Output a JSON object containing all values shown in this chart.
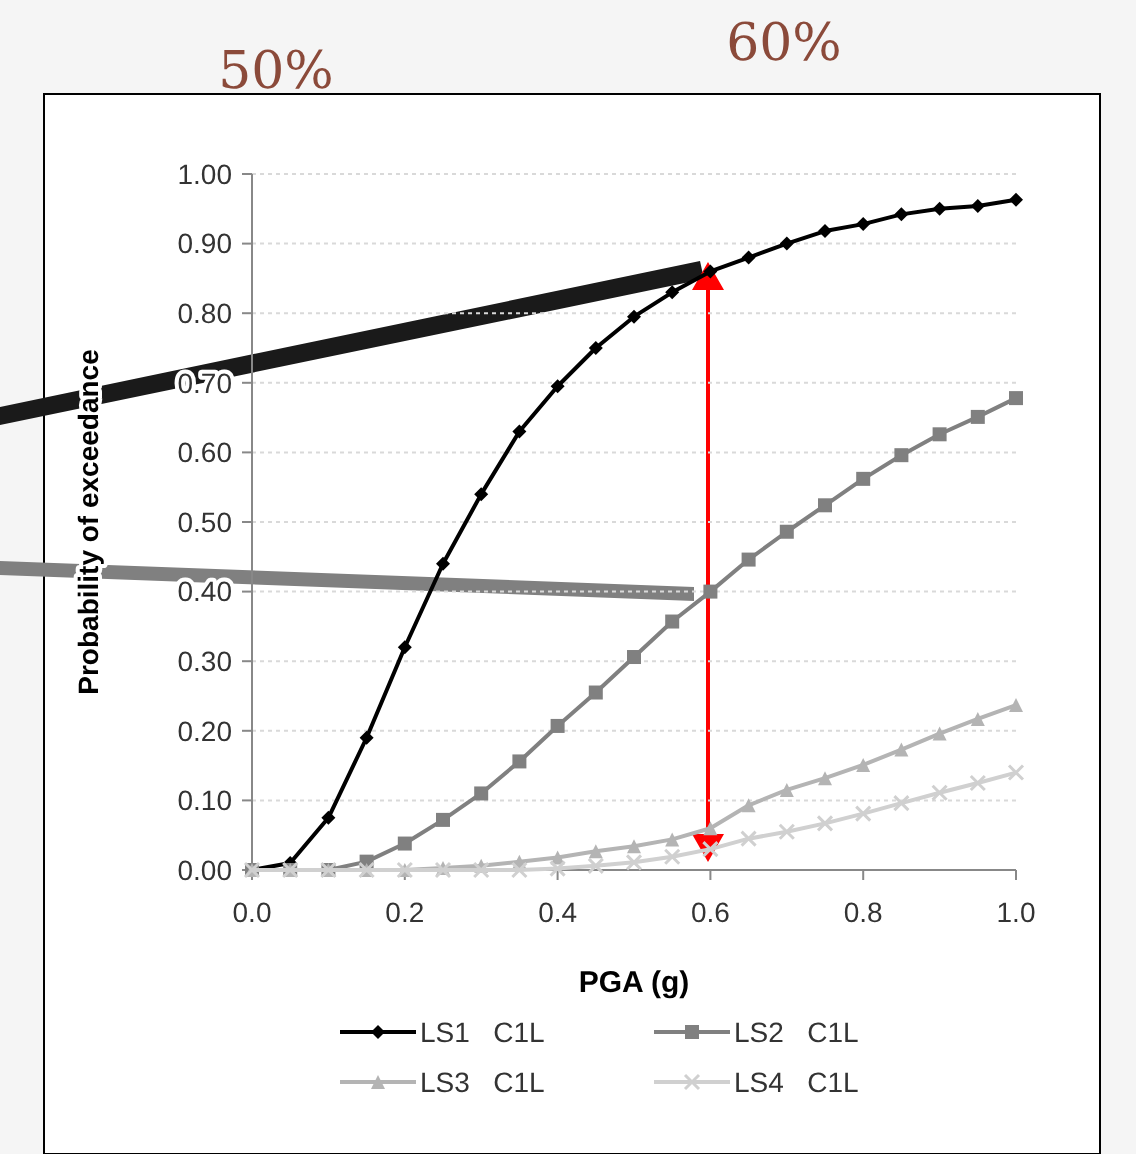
{
  "chart_data": {
    "type": "line",
    "xlabel": "PGA (g)",
    "ylabel": "Probability of exceedance",
    "annotations": [
      "50%",
      "60%"
    ],
    "x": [
      0,
      0.05,
      0.1,
      0.15,
      0.2,
      0.25,
      0.3,
      0.35,
      0.4,
      0.45,
      0.5,
      0.55,
      0.6,
      0.65,
      0.7,
      0.75,
      0.8,
      0.85,
      0.9,
      0.95,
      1.0
    ],
    "series": [
      {
        "name": "LS1   C1L",
        "color": "#000000",
        "marker": "diamond",
        "values": [
          0,
          0.01,
          0.075,
          0.19,
          0.32,
          0.44,
          0.54,
          0.63,
          0.695,
          0.75,
          0.795,
          0.83,
          0.86,
          0.88,
          0.9,
          0.918,
          0.928,
          0.942,
          0.95,
          0.954,
          0.963
        ]
      },
      {
        "name": "LS2   C1L",
        "color": "#808080",
        "marker": "square",
        "values": [
          0,
          0,
          0,
          0.012,
          0.038,
          0.072,
          0.11,
          0.156,
          0.207,
          0.255,
          0.306,
          0.357,
          0.4,
          0.446,
          0.486,
          0.524,
          0.562,
          0.596,
          0.626,
          0.651,
          0.678
        ]
      },
      {
        "name": "LS3   C1L",
        "color": "#b4b4b4",
        "marker": "triangle",
        "values": [
          0,
          0,
          0,
          0,
          0,
          0.003,
          0.006,
          0.012,
          0.018,
          0.027,
          0.034,
          0.044,
          0.06,
          0.093,
          0.115,
          0.132,
          0.151,
          0.173,
          0.196,
          0.217,
          0.237
        ]
      },
      {
        "name": "LS4   C1L",
        "color": "#d0d0d0",
        "marker": "cross",
        "values": [
          0,
          0,
          0,
          0,
          0,
          0,
          0,
          0,
          0.002,
          0.006,
          0.011,
          0.019,
          0.03,
          0.045,
          0.055,
          0.067,
          0.081,
          0.096,
          0.111,
          0.125,
          0.14
        ]
      }
    ],
    "xlim": [
      0,
      1
    ],
    "xticks": [
      {
        "value": 0,
        "label": "0.0"
      },
      0.2,
      0.4,
      0.6,
      0.8,
      {
        "value": 1,
        "label": "1.0"
      }
    ],
    "ylim": [
      0,
      1
    ],
    "yticks": [
      {
        "value": 0,
        "label": "0.00"
      },
      {
        "value": 0.1,
        "label": "0.10"
      },
      {
        "value": 0.2,
        "label": "0.20"
      },
      {
        "value": 0.3,
        "label": "0.30"
      },
      {
        "value": 0.4,
        "label": "0.40"
      },
      {
        "value": 0.5,
        "label": "0.50"
      },
      {
        "value": 0.6,
        "label": "0.60"
      },
      {
        "value": 0.7,
        "label": "0.70"
      },
      {
        "value": 0.8,
        "label": "0.80"
      },
      {
        "value": 0.9,
        "label": "0.90"
      },
      {
        "value": 1,
        "label": "1.00"
      }
    ],
    "grid": "y",
    "legend": "bottom"
  }
}
